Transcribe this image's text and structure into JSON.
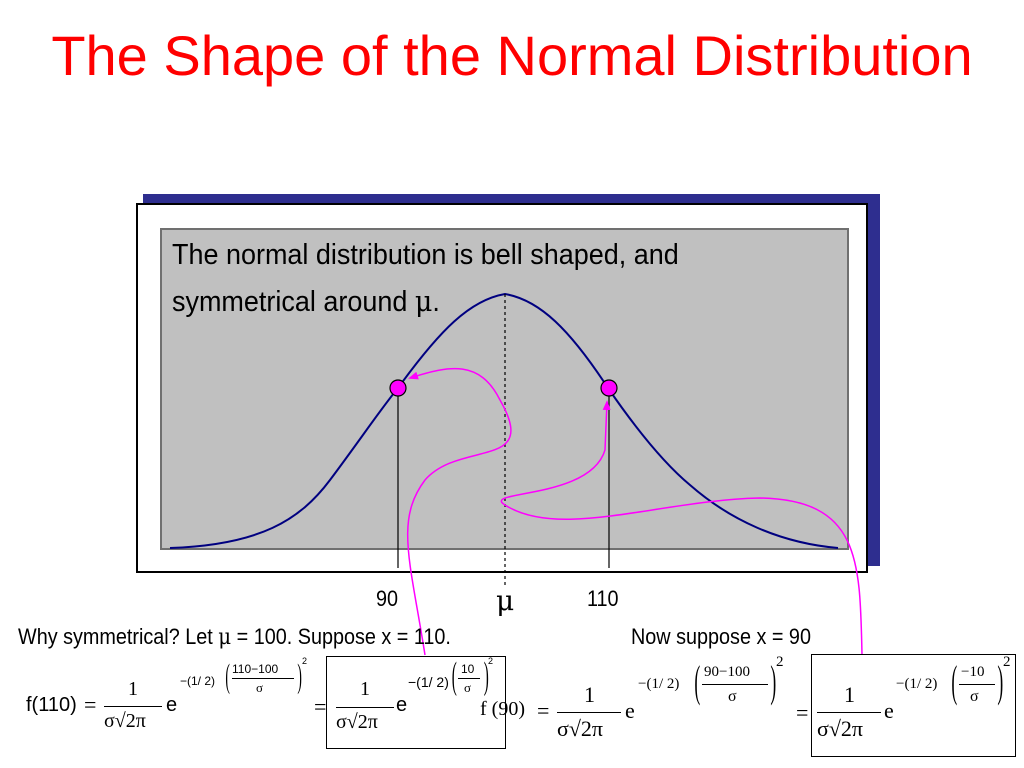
{
  "title": "The Shape of the Normal Distribution",
  "box_text_line1": "The normal distribution is bell shaped, and",
  "box_text_line2": "symmetrical around ",
  "box_text_mu": "μ",
  "box_text_end": ".",
  "axis_labels": {
    "left": "90",
    "mu": "μ",
    "right": "110"
  },
  "line1_left": "Why symmetrical?  Let ",
  "line1_mu": "μ",
  "line1_rest": " = 100.  Suppose x = 110.",
  "line1_right": "Now suppose x = 90",
  "eq110": {
    "lhs": "f(110)",
    "eq": "=",
    "num": "1",
    "den": "σ√2π",
    "base": "e",
    "exp_coef": "−(1/ 2)",
    "exp_num": "110−100",
    "exp_den": "σ",
    "exp_pow": "2"
  },
  "eq110_simpl": {
    "eq": "=",
    "num": "1",
    "den": "σ√2π",
    "base": "e",
    "exp_coef": "−(1/ 2)",
    "exp_num": "10",
    "exp_den": "σ",
    "exp_pow": "2"
  },
  "eq90": {
    "lhs": "f (90)",
    "eq": "=",
    "num": "1",
    "den": "σ√2π",
    "base": "e",
    "exp_coef": "−(1/ 2)",
    "exp_num": "90−100",
    "exp_den": "σ",
    "exp_pow": "2"
  },
  "eq90_simpl": {
    "eq": "=",
    "num": "1",
    "den": "σ√2π",
    "base": "e",
    "exp_coef": "−(1/ 2)",
    "exp_num": "−10",
    "exp_den": "σ",
    "exp_pow": "2"
  },
  "colors": {
    "title": "#ff0000",
    "curve": "#000080",
    "points": "#ff00ff",
    "arrows": "#ff00ff",
    "shadow": "#2e2e8f",
    "panel": "#c0c0c0"
  }
}
